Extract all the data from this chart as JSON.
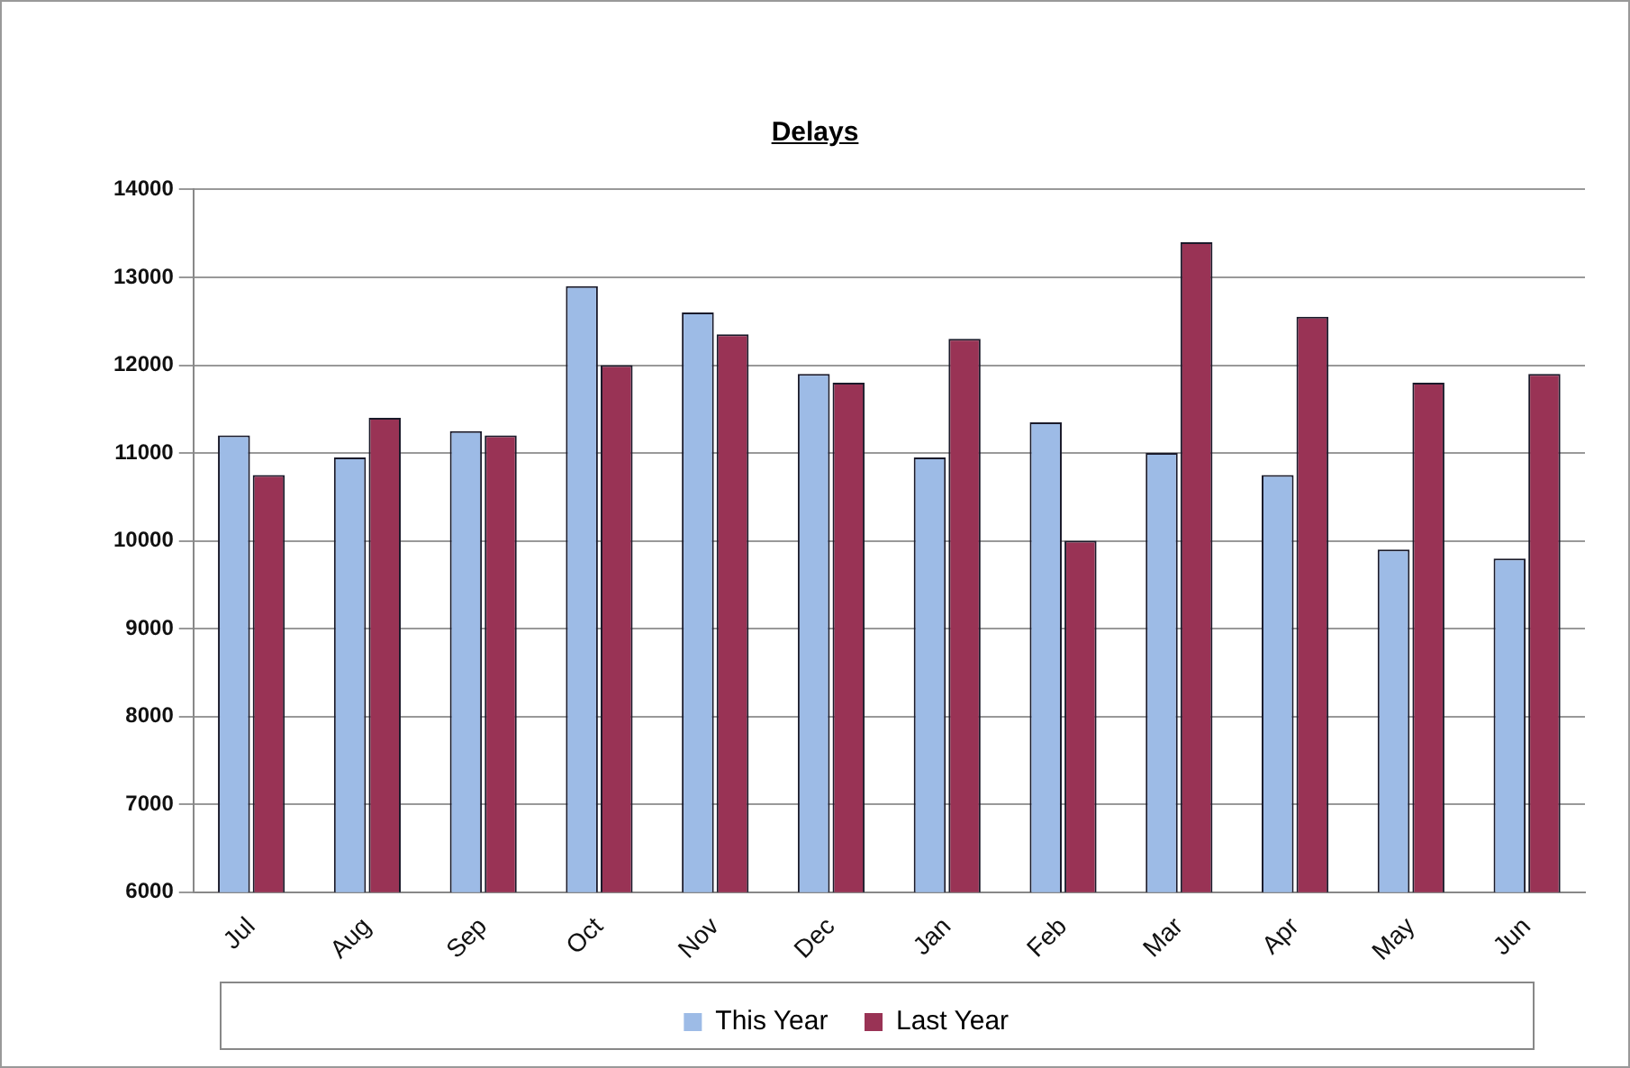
{
  "chart_data": {
    "type": "bar",
    "title": "Delays",
    "categories": [
      "Jul",
      "Aug",
      "Sep",
      "Oct",
      "Nov",
      "Dec",
      "Jan",
      "Feb",
      "Mar",
      "Apr",
      "May",
      "Jun"
    ],
    "series": [
      {
        "name": "This Year",
        "color": "#9dbbe6",
        "values": [
          11200,
          10950,
          11250,
          12900,
          12600,
          11900,
          10950,
          11350,
          11000,
          10750,
          9900,
          9800
        ]
      },
      {
        "name": "Last Year",
        "color": "#993355",
        "values": [
          10750,
          11400,
          11200,
          12000,
          12350,
          11800,
          12300,
          10000,
          13400,
          12550,
          11800,
          11900
        ]
      }
    ],
    "ylim": [
      6000,
      14000
    ],
    "yticks": [
      6000,
      7000,
      8000,
      9000,
      10000,
      11000,
      12000,
      13000,
      14000
    ],
    "grid": "y",
    "legend": "bottom"
  }
}
